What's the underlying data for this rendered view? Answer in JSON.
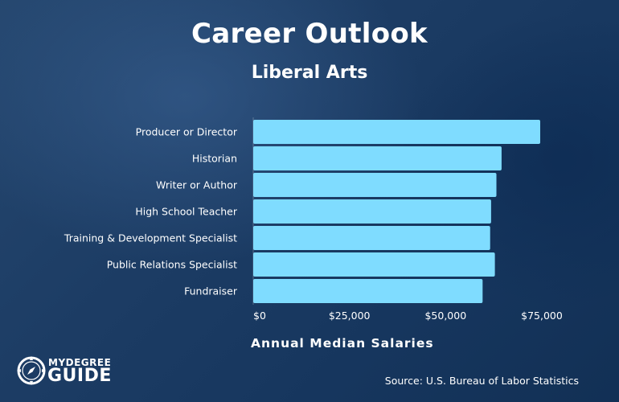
{
  "chart_data": {
    "type": "bar",
    "orientation": "horizontal",
    "title": "Career Outlook",
    "subtitle": "Liberal Arts",
    "categories": [
      "Producer or Director",
      "Historian",
      "Writer or Author",
      "High School Teacher",
      "Training & Development Specialist",
      "Public Relations Specialist",
      "Fundraiser"
    ],
    "values": [
      76400,
      64540,
      63200,
      61820,
      61570,
      62800,
      59610
    ],
    "xlabel": "Annual Median Salaries",
    "ylabel": "",
    "xlim": [
      0,
      75000
    ],
    "ticks": [
      {
        "value": 0,
        "label": "$0"
      },
      {
        "value": 25000,
        "label": "$25,000"
      },
      {
        "value": 50000,
        "label": "$50,000"
      },
      {
        "value": 75000,
        "label": "$75,000"
      }
    ],
    "grid": false,
    "bar_color": "#7fdcff"
  },
  "source": "Source: U.S. Bureau of Labor Statistics",
  "logo": {
    "top": "MYDEGREE",
    "bottom": "GUIDE",
    "icon": "compass-icon"
  }
}
